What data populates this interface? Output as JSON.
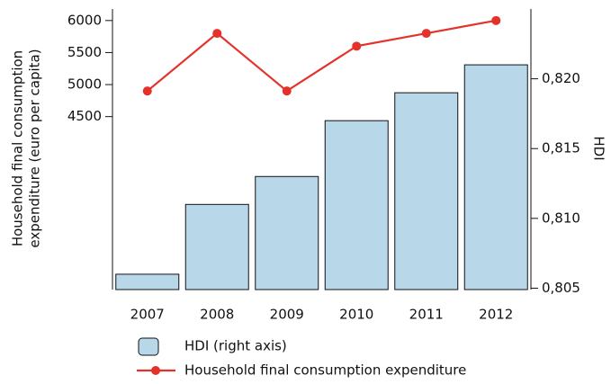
{
  "chart_data": {
    "type": "bar-line",
    "categories": [
      "2007",
      "2008",
      "2009",
      "2010",
      "2011",
      "2012"
    ],
    "series": [
      {
        "name": "HDI (right axis)",
        "type": "bar",
        "axis": "y2",
        "color": "#b8d8ea",
        "values": [
          0.806,
          0.811,
          0.813,
          0.817,
          0.819,
          0.821
        ]
      },
      {
        "name": "Household final consumption expenditure",
        "type": "line",
        "color": "#e4322b",
        "values": [
          4900,
          5800,
          4900,
          5600,
          5800,
          6000
        ]
      }
    ],
    "ylabel": [
      "Household final consumption",
      "expenditure (euro per capita)"
    ],
    "y2label": "HDI",
    "ylim": [
      1800,
      6180
    ],
    "yticks": [
      4500,
      5000,
      5500,
      6000
    ],
    "y2lim": [
      0.8049,
      0.825
    ],
    "y2ticks": [
      {
        "value": 0.805,
        "label": "0,805"
      },
      {
        "value": 0.81,
        "label": "0,810"
      },
      {
        "value": 0.815,
        "label": "0,815"
      },
      {
        "value": 0.82,
        "label": "0,820"
      }
    ],
    "legend": "bottom",
    "grid": false
  }
}
